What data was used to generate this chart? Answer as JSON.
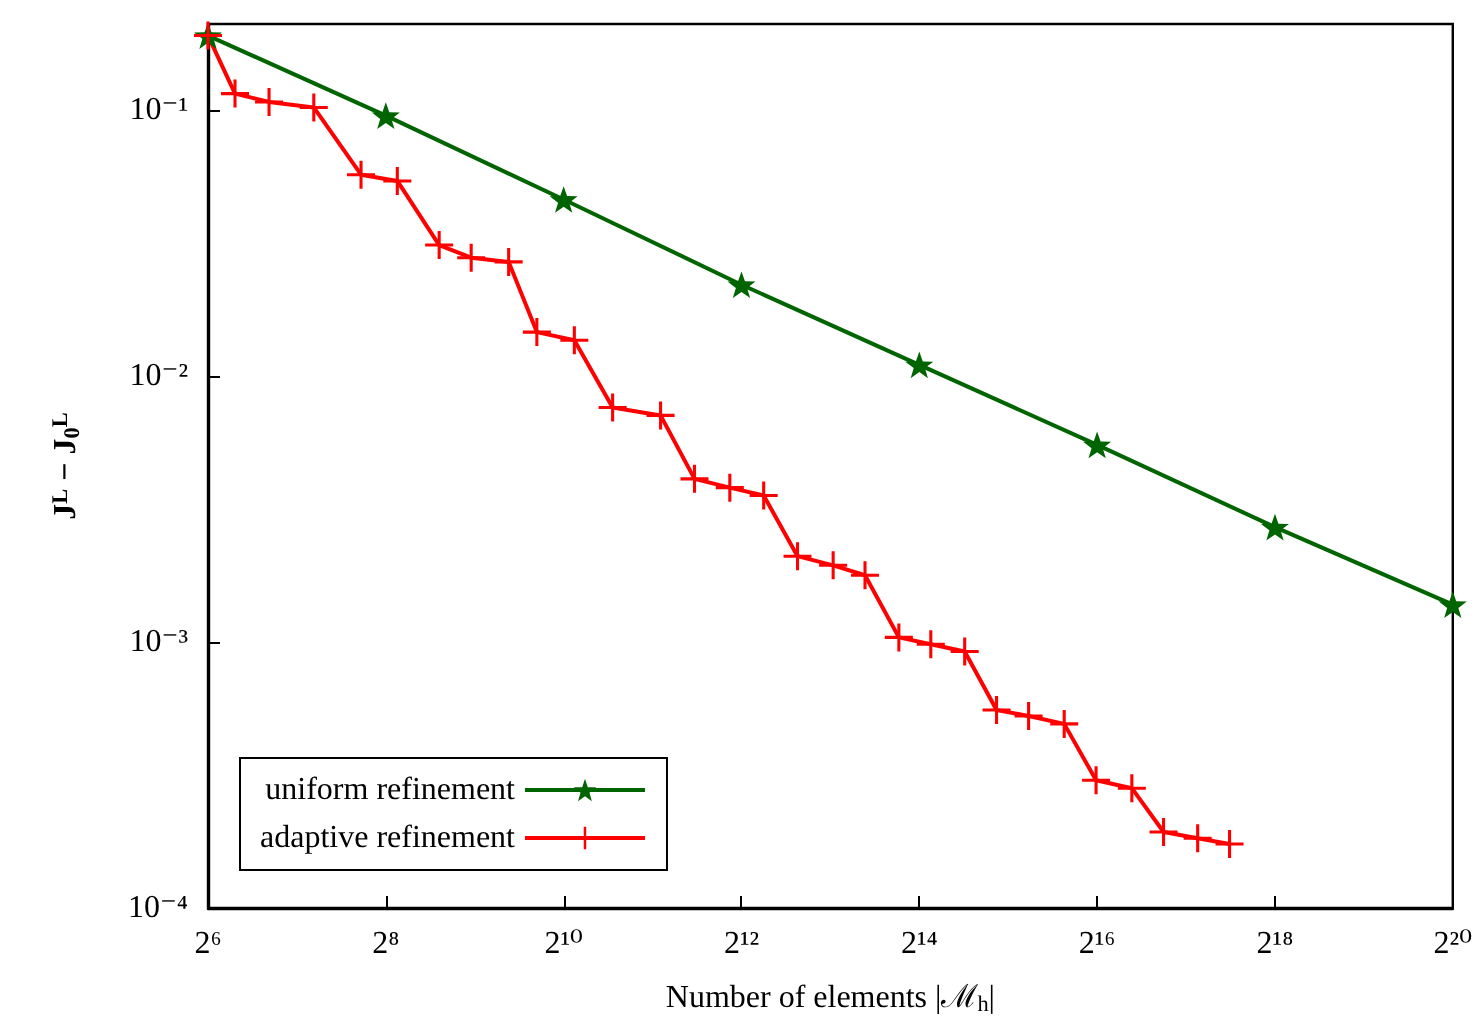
{
  "chart_data": {
    "type": "line",
    "xlabel": "Number of elements |ℳ$_{h}$|",
    "ylabel": "J$^{L}$ − J$_{0}$$^{L}$",
    "log": "xy",
    "xlim": [
      64,
      1048576
    ],
    "xticks": [
      {
        "value": 64,
        "label": "2⁶"
      },
      {
        "value": 256,
        "label": "2⁸"
      },
      {
        "value": 1024,
        "label": "2¹⁰"
      },
      {
        "value": 4096,
        "label": "2¹²"
      },
      {
        "value": 16384,
        "label": "2¹⁴"
      },
      {
        "value": 65536,
        "label": "2¹⁶"
      },
      {
        "value": 262144,
        "label": "2¹⁸"
      },
      {
        "value": 1048576,
        "label": "2²⁰"
      }
    ],
    "ylim": [
      0.0001,
      0.21
    ],
    "yticks": [
      {
        "value": 0.0001,
        "label": "10⁻⁴"
      },
      {
        "value": 0.001,
        "label": "10⁻³"
      },
      {
        "value": 0.01,
        "label": "10⁻²"
      },
      {
        "value": 0.1,
        "label": "10⁻¹"
      }
    ],
    "legend": "bottom left",
    "series": [
      {
        "name": "uniform refinement",
        "color": "#006400",
        "marker": "star",
        "x": [
          64,
          256,
          1024,
          4096,
          16384,
          65536,
          262144,
          1048576
        ],
        "values": [
          0.19,
          0.095,
          0.046,
          0.022,
          0.011,
          0.0055,
          0.0027,
          0.00138
        ]
      },
      {
        "name": "adaptive refinement",
        "color": "#ff0000",
        "marker": "cross",
        "x": [
          64,
          79,
          103,
          146,
          211,
          280,
          388,
          498,
          667,
          831,
          1113,
          1500,
          2180,
          2840,
          3740,
          4870,
          6340,
          8370,
          10730,
          13970,
          17920,
          23340,
          29920,
          38410,
          50700,
          65000,
          85900,
          110000,
          143500,
          184000
        ],
        "values": [
          0.19,
          0.115,
          0.107,
          0.102,
          0.057,
          0.054,
          0.031,
          0.0278,
          0.0268,
          0.0146,
          0.0136,
          0.0076,
          0.0071,
          0.0041,
          0.0038,
          0.00355,
          0.0021,
          0.00194,
          0.00178,
          0.00104,
          0.00098,
          0.00092,
          0.000555,
          0.000527,
          0.000492,
          0.000302,
          0.000282,
          0.000193,
          0.000183,
          0.000174
        ]
      }
    ]
  }
}
